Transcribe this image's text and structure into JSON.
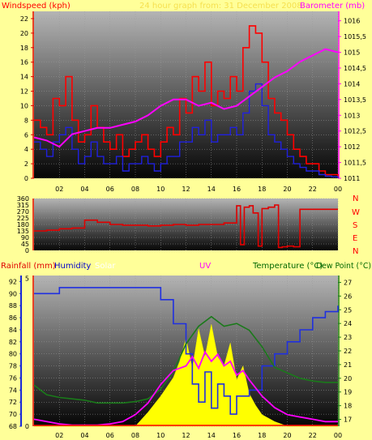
{
  "colors": {
    "background": "#ffff99",
    "wind": "#ff0000",
    "gust": "#2020e0",
    "barometer": "#ff00ff",
    "direction": "#e00000",
    "humidity": "#2030e0",
    "solar": "#ffff00",
    "uv": "#ff00ff",
    "temperature": "#1a7a1a",
    "dewpoint": "#1a7a1a"
  },
  "header": {
    "left": "Windspeed (kph)",
    "center": "24 hour graph from: 31 December 2008",
    "right": "Barometer (mb)"
  },
  "lower_header": {
    "rainfall": "Rainfall (mm)",
    "humidity": "Humidity",
    "solar": "Solar",
    "uv": "UV",
    "temperature": "Temperature (°C)",
    "dewpoint": "Dew Point (°C)"
  },
  "compass": [
    "N",
    "W",
    "S",
    "E",
    "N"
  ],
  "chart_data": [
    {
      "type": "line",
      "xlabel": "",
      "x_ticks": [
        "02",
        "04",
        "06",
        "08",
        "10",
        "12",
        "14",
        "16",
        "18",
        "20",
        "22",
        "00"
      ],
      "xlim": [
        0,
        24
      ],
      "y_ticks": [
        "0",
        "2",
        "4",
        "6",
        "8",
        "10",
        "12",
        "14",
        "16",
        "18",
        "20",
        "22"
      ],
      "ylim": [
        0,
        23
      ],
      "y2_ticks": [
        "1011",
        "1011,5",
        "1012",
        "1012,5",
        "1013",
        "1013,5",
        "1014",
        "1014,5",
        "1015",
        "1015,5",
        "1016"
      ],
      "y2lim": [
        1011,
        1016.3
      ],
      "series": [
        {
          "name": "wind_peaks",
          "x": [
            0,
            0.5,
            1,
            1.5,
            2,
            2.5,
            3,
            3.5,
            4,
            4.5,
            5,
            5.5,
            6,
            6.5,
            7,
            7.5,
            8,
            8.5,
            9,
            9.5,
            10,
            10.5,
            11,
            11.5,
            12,
            12.5,
            13,
            13.5,
            14,
            14.5,
            15,
            15.5,
            16,
            16.5,
            17,
            17.5,
            18,
            18.5,
            19,
            19.5,
            20,
            20.5,
            21,
            21.5,
            22,
            22.5,
            23,
            23.5,
            24
          ],
          "y": [
            8,
            7,
            6,
            11,
            10,
            14,
            8,
            5,
            6,
            10,
            7,
            5,
            4,
            6,
            3,
            4,
            5,
            6,
            4,
            3,
            5,
            7,
            6,
            11,
            9,
            14,
            12,
            16,
            10,
            12,
            11,
            14,
            12,
            18,
            21,
            20,
            16,
            11,
            9,
            8,
            6,
            4,
            3,
            2,
            2,
            1,
            0.5,
            0.5,
            0
          ]
        },
        {
          "name": "wind_avg",
          "x": [
            0,
            0.5,
            1,
            1.5,
            2,
            2.5,
            3,
            3.5,
            4,
            4.5,
            5,
            5.5,
            6,
            6.5,
            7,
            7.5,
            8,
            8.5,
            9,
            9.5,
            10,
            10.5,
            11,
            11.5,
            12,
            12.5,
            13,
            13.5,
            14,
            14.5,
            15,
            15.5,
            16,
            16.5,
            17,
            17.5,
            18,
            18.5,
            19,
            19.5,
            20,
            20.5,
            21,
            21.5,
            22,
            22.5,
            23,
            23.5,
            24
          ],
          "y": [
            5,
            4,
            3,
            5,
            6,
            7,
            4,
            2,
            3,
            5,
            3,
            2,
            2,
            3,
            1,
            2,
            2,
            3,
            2,
            1,
            2,
            3,
            3,
            5,
            5,
            7,
            6,
            8,
            5,
            6,
            6,
            7,
            6,
            9,
            12,
            13,
            10,
            6,
            5,
            4,
            3,
            2,
            1.5,
            1,
            1,
            0.5,
            0.3,
            0.2,
            0
          ]
        },
        {
          "name": "barometer",
          "x": [
            0,
            1,
            2,
            3,
            4,
            5,
            6,
            7,
            8,
            9,
            10,
            11,
            12,
            13,
            14,
            15,
            16,
            17,
            18,
            19,
            20,
            21,
            22,
            23,
            24
          ],
          "y": [
            1012.3,
            1012.2,
            1012.0,
            1012.4,
            1012.5,
            1012.6,
            1012.6,
            1012.7,
            1012.8,
            1013.0,
            1013.3,
            1013.5,
            1013.5,
            1013.3,
            1013.4,
            1013.2,
            1013.3,
            1013.6,
            1013.9,
            1014.2,
            1014.4,
            1014.7,
            1014.9,
            1015.1,
            1015.0
          ]
        }
      ]
    },
    {
      "type": "line",
      "y_ticks": [
        "360",
        "315",
        "270",
        "225",
        "180",
        "135",
        "90",
        "45",
        "0"
      ],
      "ylim": [
        0,
        360
      ],
      "series": [
        {
          "name": "direction",
          "x": [
            0,
            1,
            2,
            3,
            4,
            5,
            6,
            7,
            8,
            9,
            10,
            11,
            12,
            13,
            14,
            15,
            16,
            16.3,
            16.6,
            17,
            17.3,
            17.7,
            18,
            18.5,
            19,
            19.3,
            19.6,
            20,
            20.5,
            21,
            22,
            23,
            24
          ],
          "y": [
            135,
            140,
            150,
            155,
            210,
            195,
            180,
            175,
            175,
            170,
            175,
            180,
            175,
            180,
            180,
            190,
            310,
            40,
            300,
            310,
            260,
            30,
            290,
            300,
            315,
            20,
            25,
            30,
            25,
            285,
            285,
            285,
            285
          ]
        }
      ]
    },
    {
      "type": "line",
      "x_ticks": [
        "02",
        "04",
        "06",
        "08",
        "10",
        "12",
        "14",
        "16",
        "18",
        "20",
        "22",
        "00"
      ],
      "xlim": [
        0,
        24
      ],
      "rain_ticks": [
        "0",
        "5"
      ],
      "humidity_ticks": [
        "68",
        "70",
        "72",
        "74",
        "76",
        "78",
        "80",
        "82",
        "84",
        "86",
        "88",
        "90",
        "92"
      ],
      "humidity_lim": [
        68,
        93
      ],
      "temp_ticks": [
        "17",
        "18",
        "19",
        "20",
        "21",
        "22",
        "23",
        "24",
        "25",
        "26",
        "27"
      ],
      "temp_lim": [
        16.5,
        27.5
      ],
      "series": [
        {
          "name": "humidity",
          "x": [
            0,
            2,
            4,
            6,
            8,
            10,
            11,
            12,
            12.5,
            13,
            13.5,
            14,
            14.5,
            15,
            15.5,
            16,
            17,
            18,
            19,
            20,
            21,
            22,
            23,
            24
          ],
          "y": [
            90,
            91,
            91,
            91,
            91,
            89,
            85,
            80,
            75,
            72,
            77,
            71,
            75,
            73,
            70,
            73,
            74,
            78,
            80,
            82,
            84,
            86,
            87,
            88
          ]
        },
        {
          "name": "temperature",
          "x": [
            0,
            1,
            2,
            3,
            4,
            5,
            6,
            7,
            8,
            9,
            10,
            11,
            12,
            13,
            14,
            15,
            16,
            17,
            18,
            19,
            20,
            21,
            22,
            23,
            24
          ],
          "y": [
            19.5,
            18.8,
            18.6,
            18.5,
            18.4,
            18.2,
            18.2,
            18.2,
            18.3,
            18.5,
            19.2,
            20.5,
            22.5,
            23.8,
            24.5,
            23.8,
            24.0,
            23.5,
            22.3,
            20.8,
            20.4,
            20.0,
            19.8,
            19.7,
            19.7
          ]
        },
        {
          "name": "uv",
          "x": [
            0,
            1,
            2,
            3,
            4,
            5,
            6,
            7,
            8,
            9,
            10,
            11,
            12,
            12.5,
            13,
            13.5,
            14,
            14.5,
            15,
            15.5,
            16,
            16.5,
            17,
            18,
            19,
            20,
            21,
            22,
            23,
            24
          ],
          "y": [
            0.3,
            0.2,
            0.1,
            0.05,
            0.05,
            0.05,
            0.1,
            0.2,
            0.5,
            1.0,
            1.8,
            2.4,
            2.6,
            3.0,
            2.5,
            3.2,
            2.8,
            3.1,
            2.6,
            2.8,
            2.2,
            2.4,
            2.0,
            1.3,
            0.8,
            0.5,
            0.4,
            0.3,
            0.2,
            0.2
          ]
        },
        {
          "name": "solar",
          "x": [
            0,
            8,
            9,
            10,
            11,
            11.5,
            12,
            12.5,
            13,
            13.5,
            14,
            14.5,
            15,
            15.5,
            16,
            16.5,
            17,
            17.5,
            18,
            19,
            20,
            24
          ],
          "y": [
            0,
            0,
            0.6,
            1.3,
            2.1,
            2.8,
            3.8,
            2.5,
            4.2,
            3.0,
            4.4,
            3.0,
            2.6,
            3.6,
            2.0,
            2.6,
            1.4,
            0.9,
            0.5,
            0.2,
            0,
            0
          ]
        }
      ]
    }
  ]
}
